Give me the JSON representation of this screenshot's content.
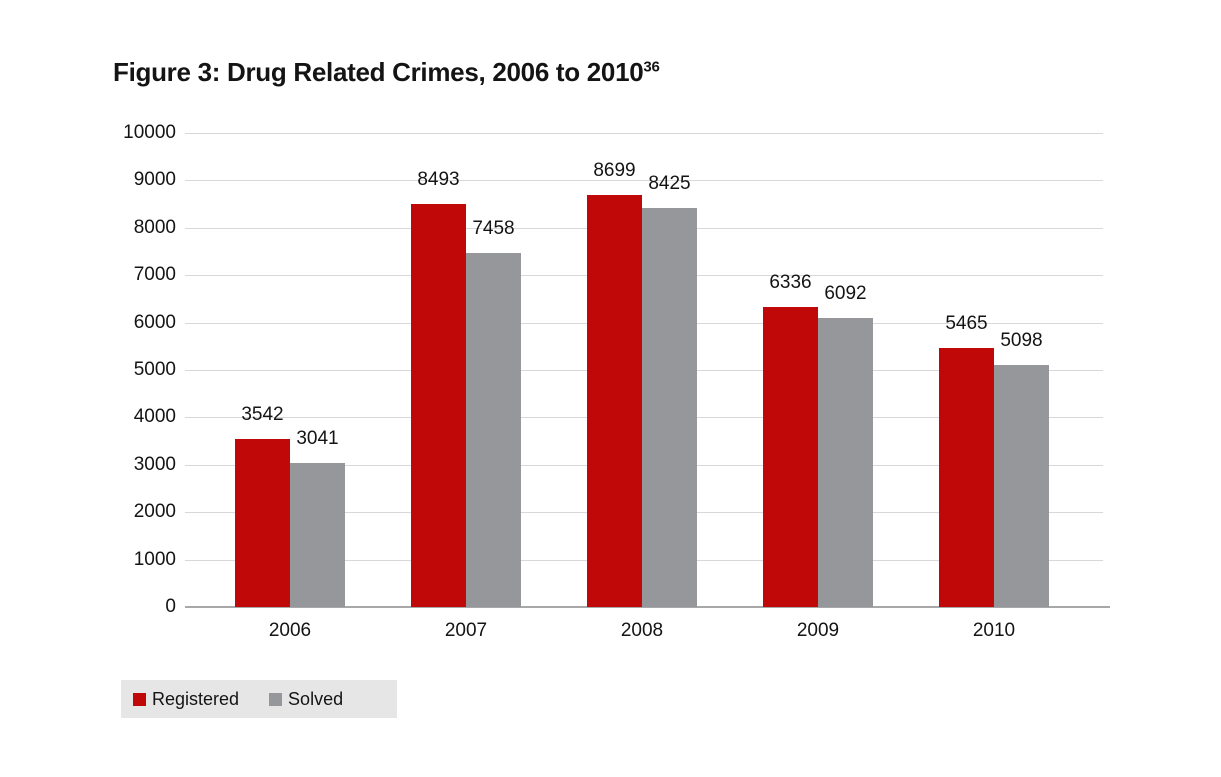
{
  "figure": {
    "title": "Figure 3: Drug Related Crimes, 2006 to 2010",
    "title_superscript": "36"
  },
  "chart_data": {
    "type": "bar",
    "title": "Figure 3: Drug Related Crimes, 2006 to 2010 (footnote 36)",
    "categories": [
      "2006",
      "2007",
      "2008",
      "2009",
      "2010"
    ],
    "series": [
      {
        "name": "Registered",
        "color": "#c00808",
        "values": [
          3542,
          8493,
          8699,
          6336,
          5465
        ]
      },
      {
        "name": "Solved",
        "color": "#96979a",
        "values": [
          3041,
          7458,
          8425,
          6092,
          5098
        ]
      }
    ],
    "xlabel": "",
    "ylabel": "",
    "ylim": [
      0,
      10000
    ],
    "ytick_step": 1000,
    "grid": true,
    "data_labels": true,
    "legend_position": "bottom-left"
  },
  "colors": {
    "gridline": "#d8d8d8",
    "baseline": "#a8a8a8",
    "legend_background": "#e6e6e6",
    "text": "#141414",
    "background": "#ffffff"
  }
}
